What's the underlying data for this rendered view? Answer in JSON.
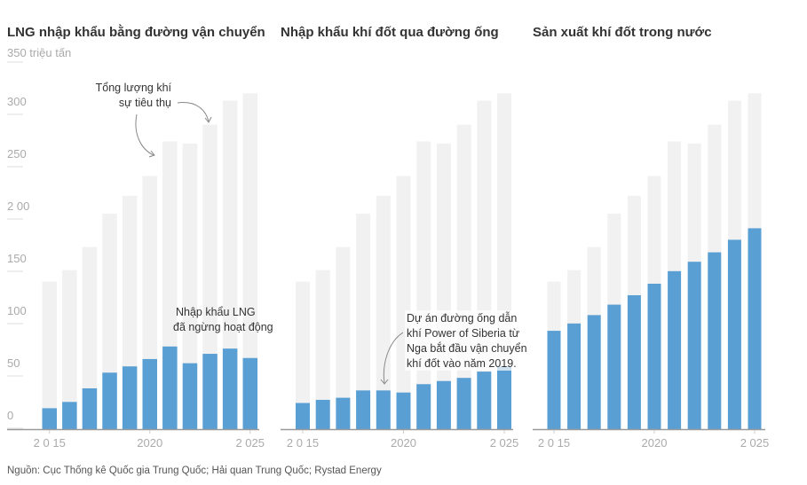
{
  "colors": {
    "total": "#f1f1f1",
    "series": "#5a9fd4",
    "axis": "#999999"
  },
  "unit_label": "350 triệu tấn",
  "source": "Nguồn: Cục Thống kê Quốc gia Trung Quốc; Hải quan Trung Quốc; Rystad Energy",
  "chart_data": [
    {
      "type": "bar",
      "title": "LNG nhập khẩu bằng đường vận chuyển",
      "categories": [
        2015,
        2016,
        2017,
        2018,
        2019,
        2020,
        2021,
        2022,
        2023,
        2024,
        2025
      ],
      "x_tick_labels": [
        "2 0 15",
        "2020",
        "2 025"
      ],
      "y_tick_labels": [
        "0",
        "50",
        "100",
        "150",
        "2 00",
        "250",
        "300"
      ],
      "ylim": [
        0,
        350
      ],
      "series": [
        {
          "name": "Tổng lượng khí sự tiêu thụ",
          "values": [
            141,
            152,
            174,
            206,
            223,
            242,
            275,
            273,
            291,
            314,
            321
          ]
        },
        {
          "values": [
            20,
            26,
            39,
            54,
            60,
            67,
            79,
            63,
            72,
            77,
            68
          ]
        }
      ],
      "annotations": [
        {
          "lines": [
            "Tổng lượng khí",
            "sự tiêu thụ"
          ]
        },
        {
          "lines": [
            "Nhập khẩu LNG",
            "đã ngừng hoạt động"
          ]
        }
      ]
    },
    {
      "type": "bar",
      "title": "Nhập khẩu khí đốt qua đường ống",
      "categories": [
        2015,
        2016,
        2017,
        2018,
        2019,
        2020,
        2021,
        2022,
        2023,
        2024,
        2025
      ],
      "x_tick_labels": [
        "2 0 15",
        "2020",
        "2 025"
      ],
      "ylim": [
        0,
        350
      ],
      "series": [
        {
          "values": [
            141,
            152,
            174,
            206,
            223,
            242,
            275,
            273,
            291,
            314,
            321
          ]
        },
        {
          "values": [
            25,
            28,
            30,
            37,
            37,
            35,
            43,
            46,
            49,
            55,
            60
          ]
        }
      ],
      "annotations": [
        {
          "lines": [
            "Dự án đường ống dẫn",
            "khí Power of Siberia từ",
            "Nga bắt đầu vận chuyển",
            "khí đốt vào năm 2019."
          ]
        }
      ]
    },
    {
      "type": "bar",
      "title": "Sản xuất khí đốt trong nước",
      "categories": [
        2015,
        2016,
        2017,
        2018,
        2019,
        2020,
        2021,
        2022,
        2023,
        2024,
        2025
      ],
      "x_tick_labels": [
        "2 0 15",
        "2020",
        "2 025"
      ],
      "ylim": [
        0,
        350
      ],
      "series": [
        {
          "values": [
            141,
            152,
            174,
            206,
            223,
            242,
            275,
            273,
            291,
            314,
            321
          ]
        },
        {
          "values": [
            94,
            101,
            109,
            119,
            128,
            139,
            151,
            160,
            169,
            181,
            192
          ]
        }
      ]
    }
  ]
}
